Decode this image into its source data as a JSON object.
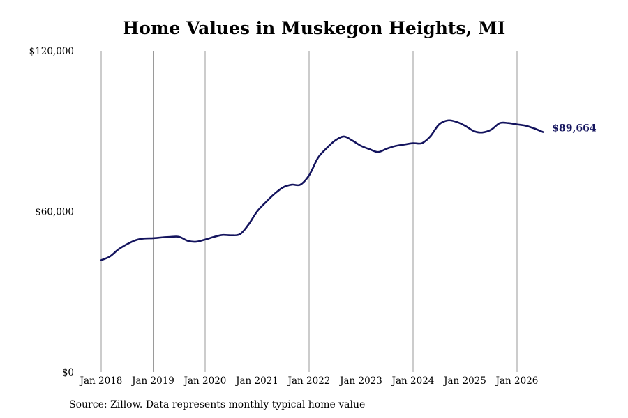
{
  "chart_data": {
    "type": "line",
    "title": "Home Values in Muskegon Heights, MI",
    "source": "Source: Zillow. Data represents monthly typical home value",
    "xlabel": "",
    "ylabel": "",
    "ylim": [
      0,
      120000
    ],
    "y_ticks": [
      {
        "value": 0,
        "label": "$0"
      },
      {
        "value": 60000,
        "label": "$60,000"
      },
      {
        "value": 120000,
        "label": "$120,000"
      }
    ],
    "x_ticks": [
      {
        "value": 2018.0,
        "label": "Jan 2018"
      },
      {
        "value": 2019.0,
        "label": "Jan 2019"
      },
      {
        "value": 2020.0,
        "label": "Jan 2020"
      },
      {
        "value": 2021.0,
        "label": "Jan 2021"
      },
      {
        "value": 2022.0,
        "label": "Jan 2022"
      },
      {
        "value": 2023.0,
        "label": "Jan 2023"
      },
      {
        "value": 2024.0,
        "label": "Jan 2024"
      },
      {
        "value": 2025.0,
        "label": "Jan 2025"
      },
      {
        "value": 2026.0,
        "label": "Jan 2026"
      }
    ],
    "vertical_grid": true,
    "line_color": "#14145e",
    "end_label": "$89,664",
    "series": [
      {
        "x": [
          2018.0,
          2018.17,
          2018.33,
          2018.5,
          2018.67,
          2018.83,
          2019.0,
          2019.17,
          2019.33,
          2019.5,
          2019.67,
          2019.83,
          2020.0,
          2020.17,
          2020.33,
          2020.5,
          2020.67,
          2020.83,
          2021.0,
          2021.17,
          2021.33,
          2021.5,
          2021.67,
          2021.83,
          2022.0,
          2022.17,
          2022.33,
          2022.5,
          2022.67,
          2022.83,
          2023.0,
          2023.17,
          2023.33,
          2023.5,
          2023.67,
          2023.83,
          2024.0,
          2024.17,
          2024.33,
          2024.5,
          2024.67,
          2024.83,
          2025.0,
          2025.17,
          2025.33,
          2025.5,
          2025.67,
          2025.83,
          2026.0,
          2026.17,
          2026.33,
          2026.5
        ],
        "y": [
          41800,
          43200,
          45800,
          47800,
          49300,
          49900,
          50000,
          50300,
          50500,
          50500,
          49000,
          48700,
          49500,
          50500,
          51200,
          51100,
          51500,
          55000,
          60000,
          63500,
          66500,
          69000,
          70000,
          70000,
          73500,
          80000,
          83500,
          86500,
          88000,
          86500,
          84500,
          83200,
          82200,
          83500,
          84500,
          85000,
          85500,
          85500,
          88000,
          92500,
          94000,
          93500,
          92000,
          90000,
          89500,
          90500,
          93000,
          93000,
          92500,
          92000,
          91000,
          89664
        ]
      }
    ]
  }
}
